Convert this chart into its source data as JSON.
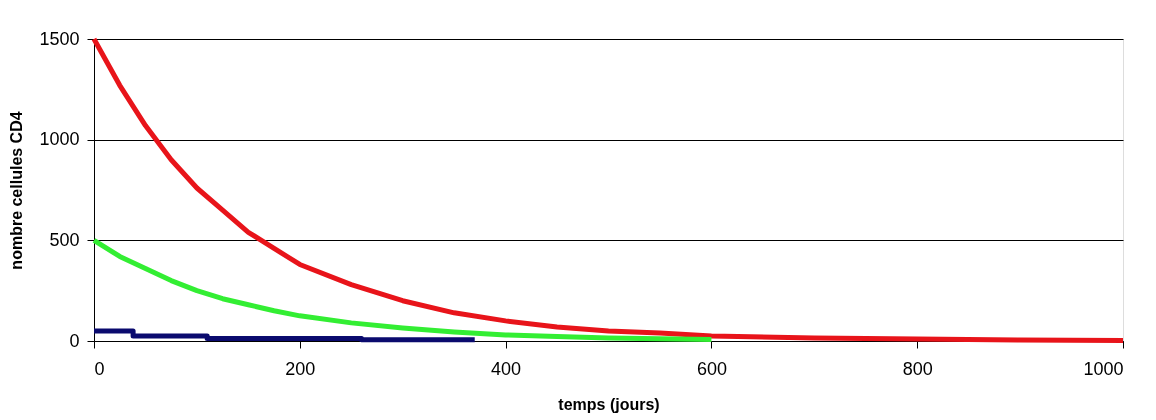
{
  "chart_data": {
    "type": "line",
    "xlabel": "temps (jours)",
    "ylabel": "nombre cellules CD4",
    "xlim": [
      0,
      1000
    ],
    "xticks": [
      0,
      200,
      400,
      600,
      800,
      1000
    ],
    "ylim": [
      0,
      1500
    ],
    "yticks": [
      0,
      500,
      1000,
      1500
    ],
    "grid": "y",
    "marker": "none",
    "line_style": "solid",
    "series": [
      {
        "color": "#e8141a",
        "x": [
          0,
          25,
          50,
          75,
          100,
          125,
          150,
          175,
          200,
          250,
          300,
          350,
          400,
          450,
          500,
          550,
          600,
          700,
          800,
          900,
          1000
        ],
        "values": [
          1500,
          1270,
          1070,
          900,
          760,
          650,
          540,
          460,
          380,
          280,
          200,
          140,
          100,
          70,
          50,
          40,
          25,
          15,
          10,
          5,
          3
        ]
      },
      {
        "color": "#33ee33",
        "x": [
          0,
          25,
          50,
          75,
          100,
          125,
          150,
          175,
          200,
          250,
          300,
          350,
          400,
          450,
          500,
          600
        ],
        "values": [
          500,
          420,
          360,
          300,
          250,
          210,
          180,
          150,
          125,
          90,
          65,
          45,
          30,
          22,
          15,
          8
        ]
      },
      {
        "type": "step",
        "color": "#0a0a6e",
        "x": [
          0,
          38,
          110,
          260,
          370
        ],
        "values": [
          50,
          25,
          12,
          6,
          6
        ]
      }
    ]
  }
}
